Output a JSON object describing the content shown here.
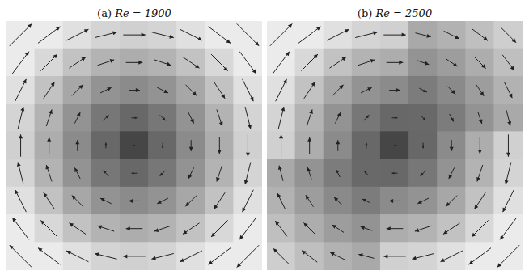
{
  "chart_data": [
    {
      "type": "quiver",
      "title": "(a) Re = 1900",
      "x": [
        -1,
        -0.75,
        -0.5,
        -0.25,
        0,
        0.25,
        0.5,
        0.75,
        1
      ],
      "y": [
        1,
        0.75,
        0.5,
        0.25,
        0,
        -0.25,
        -0.5,
        -0.75,
        -1
      ],
      "u": [
        [
          1,
          1,
          1,
          1,
          1,
          1,
          1,
          1,
          1
        ],
        [
          0.75,
          0.75,
          0.75,
          0.75,
          0.75,
          0.75,
          0.75,
          0.75,
          0.75
        ],
        [
          0.5,
          0.5,
          0.5,
          0.5,
          0.5,
          0.5,
          0.5,
          0.5,
          0.5
        ],
        [
          0.25,
          0.25,
          0.25,
          0.25,
          0.25,
          0.25,
          0.25,
          0.25,
          0.25
        ],
        [
          0,
          0,
          0,
          0,
          0,
          0,
          0,
          0,
          0
        ],
        [
          -0.25,
          -0.25,
          -0.25,
          -0.25,
          -0.25,
          -0.25,
          -0.25,
          -0.25,
          -0.25
        ],
        [
          -0.5,
          -0.5,
          -0.5,
          -0.5,
          -0.5,
          -0.5,
          -0.5,
          -0.5,
          -0.5
        ],
        [
          -0.75,
          -0.75,
          -0.75,
          -0.75,
          -0.75,
          -0.75,
          -0.75,
          -0.75,
          -0.75
        ],
        [
          -1,
          -1,
          -1,
          -1,
          -1,
          -1,
          -1,
          -1,
          -1
        ]
      ],
      "v": [
        [
          1,
          0.75,
          0.5,
          0.25,
          0,
          -0.25,
          -0.5,
          -0.75,
          -1
        ],
        [
          1,
          0.75,
          0.5,
          0.25,
          0,
          -0.25,
          -0.5,
          -0.75,
          -1
        ],
        [
          1,
          0.75,
          0.5,
          0.25,
          0,
          -0.25,
          -0.5,
          -0.75,
          -1
        ],
        [
          1,
          0.75,
          0.5,
          0.25,
          0,
          -0.25,
          -0.5,
          -0.75,
          -1
        ],
        [
          1,
          0.75,
          0.5,
          0.25,
          0,
          -0.25,
          -0.5,
          -0.75,
          -1
        ],
        [
          1,
          0.75,
          0.5,
          0.25,
          0,
          -0.25,
          -0.5,
          -0.75,
          -1
        ],
        [
          1,
          0.75,
          0.5,
          0.25,
          0,
          -0.25,
          -0.5,
          -0.75,
          -1
        ],
        [
          1,
          0.75,
          0.5,
          0.25,
          0,
          -0.25,
          -0.5,
          -0.75,
          -1
        ],
        [
          1,
          0.75,
          0.5,
          0.25,
          0,
          -0.25,
          -0.5,
          -0.75,
          -1
        ]
      ],
      "xlim": [
        -1.125,
        1.125
      ],
      "ylim": [
        -1.125,
        1.125
      ],
      "tick_labels": false
    },
    {
      "type": "quiver",
      "title": "(b) Re = 2500",
      "x": [
        -1,
        -0.75,
        -0.5,
        -0.25,
        0,
        0.25,
        0.5,
        0.75,
        1
      ],
      "y": [
        1,
        0.75,
        0.5,
        0.25,
        0,
        -0.25,
        -0.5,
        -0.75,
        -1
      ],
      "u": [
        [
          1,
          1,
          1,
          1,
          1,
          0.7,
          0.7,
          0.7,
          0.7
        ],
        [
          0.75,
          0.75,
          0.75,
          0.75,
          0.75,
          0.53,
          0.53,
          0.53,
          0.53
        ],
        [
          0.5,
          0.5,
          0.5,
          0.5,
          0.5,
          0.35,
          0.35,
          0.35,
          0.35
        ],
        [
          0.25,
          0.25,
          0.25,
          0.25,
          0.25,
          0.18,
          0.18,
          0.18,
          0.18
        ],
        [
          0,
          0,
          0,
          0,
          0,
          0,
          0,
          0,
          0
        ],
        [
          -0.18,
          -0.18,
          -0.18,
          -0.18,
          -0.25,
          -0.25,
          -0.25,
          -0.25,
          -0.25
        ],
        [
          -0.35,
          -0.35,
          -0.35,
          -0.35,
          -0.5,
          -0.5,
          -0.5,
          -0.5,
          -0.5
        ],
        [
          -0.53,
          -0.53,
          -0.53,
          -0.53,
          -0.75,
          -0.75,
          -0.75,
          -0.75,
          -0.75
        ],
        [
          -0.7,
          -0.7,
          -0.7,
          -0.7,
          -1,
          -1,
          -1,
          -1,
          -1
        ]
      ],
      "v": [
        [
          1,
          0.75,
          0.5,
          0.25,
          0,
          -0.18,
          -0.35,
          -0.53,
          -0.7
        ],
        [
          1,
          0.75,
          0.5,
          0.25,
          0,
          -0.18,
          -0.35,
          -0.53,
          -0.7
        ],
        [
          1,
          0.75,
          0.5,
          0.25,
          0,
          -0.18,
          -0.35,
          -0.53,
          -0.7
        ],
        [
          1,
          0.75,
          0.5,
          0.25,
          0,
          -0.18,
          -0.35,
          -0.53,
          -0.7
        ],
        [
          1,
          0.75,
          0.5,
          0.25,
          0,
          -0.25,
          -0.5,
          -0.75,
          -1
        ],
        [
          0.7,
          0.53,
          0.35,
          0.18,
          0,
          -0.25,
          -0.5,
          -0.75,
          -1
        ],
        [
          0.7,
          0.53,
          0.35,
          0.18,
          0,
          -0.25,
          -0.5,
          -0.75,
          -1
        ],
        [
          0.7,
          0.53,
          0.35,
          0.18,
          0,
          -0.25,
          -0.5,
          -0.75,
          -1
        ],
        [
          0.7,
          0.53,
          0.35,
          0.18,
          0,
          -0.25,
          -0.5,
          -0.75,
          -1
        ]
      ],
      "xlim": [
        -1.125,
        1.125
      ],
      "ylim": [
        -1.125,
        1.125
      ],
      "tick_labels": false
    }
  ]
}
